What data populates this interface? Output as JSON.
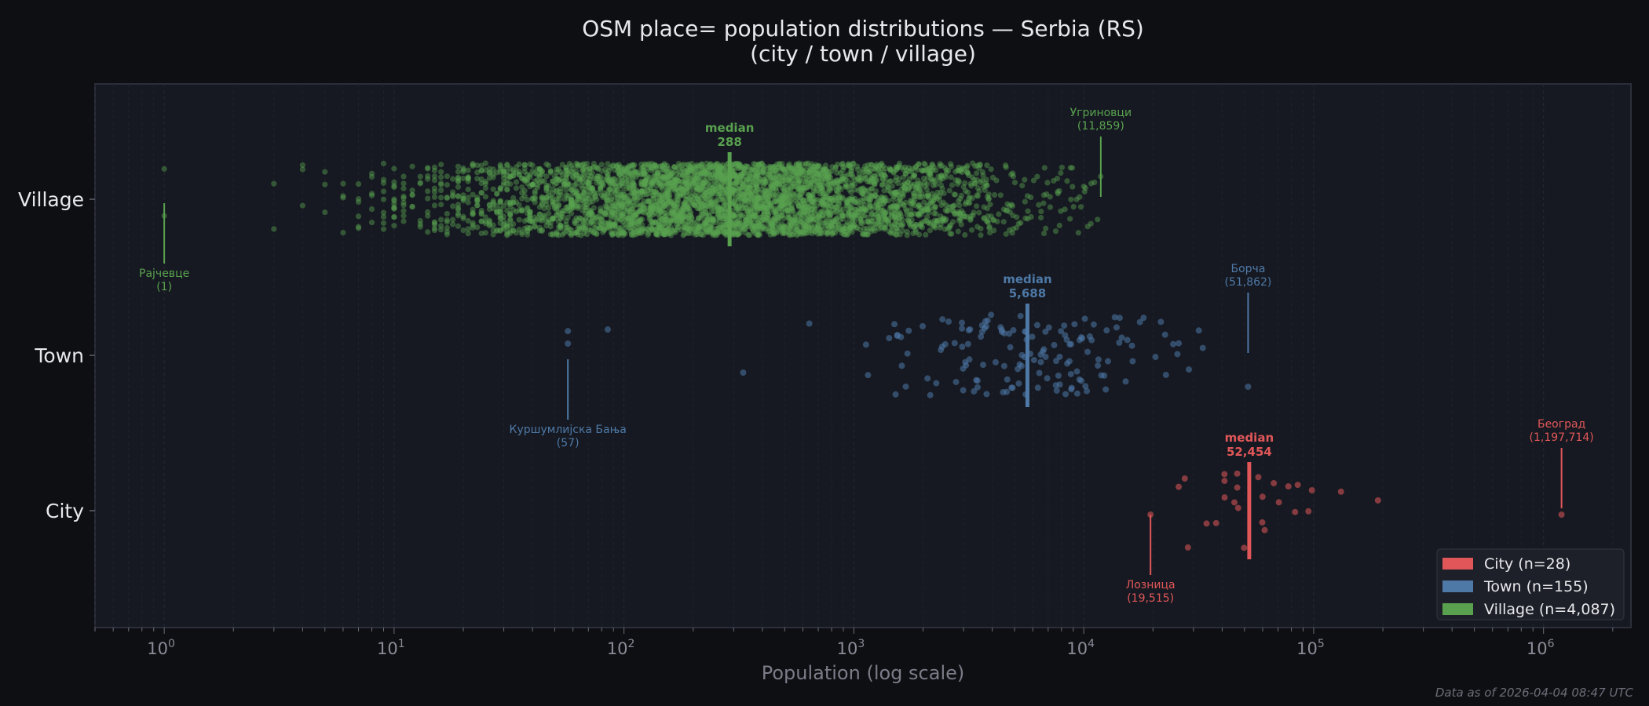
{
  "chart_data": {
    "type": "scatter",
    "title": "OSM place= population distributions — Serbia (RS)",
    "subtitle": "(city / town / village)",
    "xlabel": "Population (log scale)",
    "ylabel": "",
    "x_scale": "log",
    "xlim": [
      0.5,
      2400000
    ],
    "x_ticks": [
      {
        "value": 1,
        "label": "10",
        "exp": "0"
      },
      {
        "value": 10,
        "label": "10",
        "exp": "1"
      },
      {
        "value": 100,
        "label": "10",
        "exp": "2"
      },
      {
        "value": 1000,
        "label": "10",
        "exp": "3"
      },
      {
        "value": 10000,
        "label": "10",
        "exp": "4"
      },
      {
        "value": 100000,
        "label": "10",
        "exp": "5"
      },
      {
        "value": 1000000,
        "label": "10",
        "exp": "6"
      }
    ],
    "grid": "vertical minor dashed",
    "legend_placement": "lower-right",
    "groups": [
      {
        "key": "village",
        "label": "Village",
        "legend": "Village  (n=4,087)",
        "n": 4087,
        "color": "#59a14f",
        "median": 288,
        "median_label": "median",
        "median_value": "288",
        "spread_dex": 0.62,
        "min": {
          "name": "Рајчевце",
          "value": 1,
          "value_label": "(1)"
        },
        "max": {
          "name": "Угриновци",
          "value": 11859,
          "value_label": "(11,859)"
        }
      },
      {
        "key": "town",
        "label": "Town",
        "legend": "Town  (n=155)",
        "n": 155,
        "color": "#4e79a7",
        "median": 5688,
        "median_label": "median",
        "median_value": "5,688",
        "spread_dex": 0.33,
        "outliers": [
          57,
          85,
          330,
          640
        ],
        "min": {
          "name": "Куршумлијска Бања",
          "value": 57,
          "value_label": "(57)"
        },
        "max": {
          "name": "Борча",
          "value": 51862,
          "value_label": "(51,862)"
        }
      },
      {
        "key": "city",
        "label": "City",
        "legend": "City  (n=28)",
        "n": 28,
        "color": "#e15759",
        "median": 52454,
        "median_label": "median",
        "median_value": "52,454",
        "spread_dex": 0.2,
        "min": {
          "name": "Лозница",
          "value": 19515,
          "value_label": "(19,515)"
        },
        "max": {
          "name": "Београд",
          "value": 1197714,
          "value_label": "(1,197,714)"
        }
      }
    ]
  },
  "footer": "Data as of 2026-04-04 08:47 UTC"
}
